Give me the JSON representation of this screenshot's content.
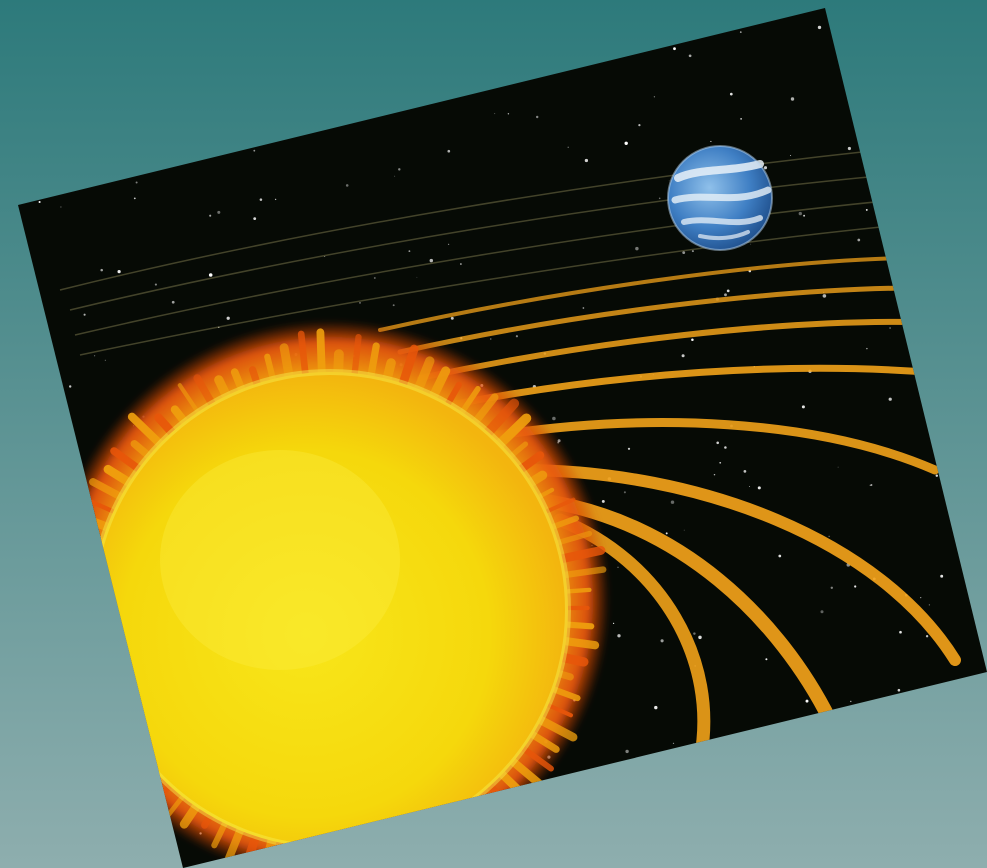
{
  "slide": {
    "background": {
      "top_color": "#2d7a7b",
      "bottom_color": "#8eaeae"
    }
  },
  "photo": {
    "subject": "sun-and-earth-orbits-illustration",
    "colors": {
      "space": "#060a05",
      "sun_core": "#f5d80c",
      "sun_glow": "#f0a10e",
      "sun_flare": "#e8560a",
      "orbit": "#f2a21a",
      "earth_ocean": "#3f7fc4",
      "earth_cloud": "#e9f1f8"
    }
  }
}
